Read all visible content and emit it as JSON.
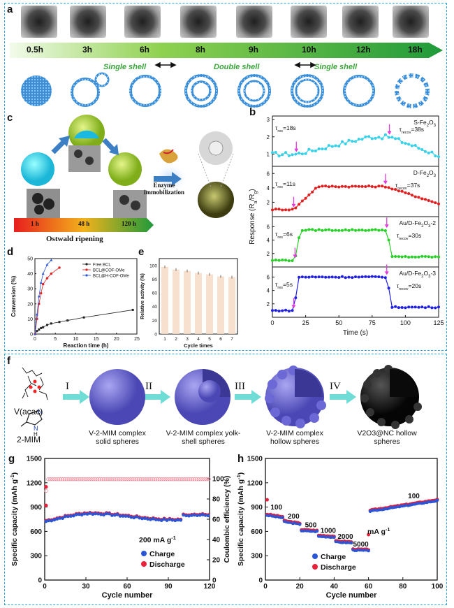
{
  "panel_a": {
    "letter": "a",
    "times": [
      "0.5h",
      "3h",
      "6h",
      "8h",
      "9h",
      "10h",
      "12h",
      "18h"
    ],
    "stage_labels": [
      "Single shell",
      "Double shell",
      "Single shell"
    ]
  },
  "panel_c": {
    "letter": "c",
    "enzyme_label_1": "Enzyme",
    "enzyme_label_2": "immobilization",
    "bar_times": [
      "1 h",
      "48 h",
      "120 h"
    ],
    "ripening": "Ostwald ripening"
  },
  "panel_b": {
    "letter": "b",
    "ylabel": "Response (R",
    "ylabel_sub": "a",
    "ylabel_mid": "/R",
    "ylabel_sub2": "g",
    "ylabel_end": ")",
    "xlabel": "Time (s)",
    "xticks": [
      "0",
      "25",
      "50",
      "75",
      "100",
      "125"
    ],
    "rows": [
      {
        "name": "S-Fe2O3",
        "tres": "=18s",
        "trecov": "=38s",
        "yticks": [
          "1",
          "2",
          "3"
        ],
        "color": "#36d0e8"
      },
      {
        "name": "D-Fe2O3",
        "tres": "=11s",
        "trecov": "=37s",
        "yticks": [
          "2",
          "4",
          "6"
        ],
        "color": "#e02020"
      },
      {
        "name": "Au/D-Fe2O3-2",
        "tres": "=6s",
        "trecov": "=30s",
        "yticks": [
          "2",
          "4",
          "6"
        ],
        "color": "#28d028"
      },
      {
        "name": "Au/D-Fe2O3-3",
        "tres": "=5s",
        "trecov": "=20s",
        "yticks": [
          "2",
          "4",
          "6"
        ],
        "color": "#2020e0"
      }
    ]
  },
  "panel_d": {
    "letter": "d",
    "ylabel": "Conversion (%)",
    "xlabel": "Reaction time (h)",
    "xticks": [
      "0",
      "5",
      "10",
      "15",
      "20",
      "25"
    ],
    "yticks": [
      "0",
      "10",
      "20",
      "30",
      "40",
      "50"
    ],
    "legend": [
      "Free BCL",
      "BCL@COF-OMe",
      "BCL@H-COF-OMe"
    ]
  },
  "panel_e": {
    "letter": "e",
    "ylabel": "Relative activity (%)",
    "xlabel": "Cycle times",
    "categories": [
      "1",
      "2",
      "3",
      "4",
      "5",
      "6",
      "7"
    ],
    "yticks": [
      "0",
      "20",
      "40",
      "60",
      "80",
      "100"
    ]
  },
  "panel_f": {
    "letter": "f",
    "v_label": "V(acac)",
    "mim_label": "2-MIM",
    "steps": [
      "I",
      "II",
      "III",
      "IV"
    ],
    "captions": [
      [
        "V-2-MIM complex",
        "solid spheres"
      ],
      [
        "V-2-MIM complex yolk-",
        "shell spheres"
      ],
      [
        "V-2-MIM complex",
        "hollow spheres"
      ],
      [
        "V2O3@NC hollow",
        "spheres"
      ]
    ]
  },
  "panel_g": {
    "letter": "g",
    "ylabel": "Specific capacity (mAh g",
    "ylabel_sup": "-1",
    "ylabel_end": ")",
    "y2label": "Coulombic efficiency (%)",
    "xlabel": "Cycle number",
    "xticks": [
      "0",
      "30",
      "60",
      "90",
      "120"
    ],
    "yticks": [
      "0",
      "300",
      "600",
      "900",
      "1200",
      "1500"
    ],
    "y2ticks": [
      "0",
      "20",
      "40",
      "60",
      "80",
      "100"
    ],
    "rate": "200 mA g",
    "rate_sup": "-1",
    "legend": [
      "Charge",
      "Discharge"
    ]
  },
  "panel_h": {
    "letter": "h",
    "ylabel": "Specific capacity (mAh g",
    "ylabel_sup": "-1",
    "ylabel_end": ")",
    "xlabel": "Cycle number",
    "xticks": [
      "0",
      "20",
      "40",
      "60",
      "80",
      "100"
    ],
    "yticks": [
      "0",
      "300",
      "600",
      "900",
      "1200",
      "1500"
    ],
    "rate_labels": [
      "100",
      "200",
      "500",
      "1000",
      "2000",
      "5000",
      "100"
    ],
    "unit": "mA g",
    "unit_sup": "-1",
    "legend": [
      "Charge",
      "Discharge"
    ]
  }
}
